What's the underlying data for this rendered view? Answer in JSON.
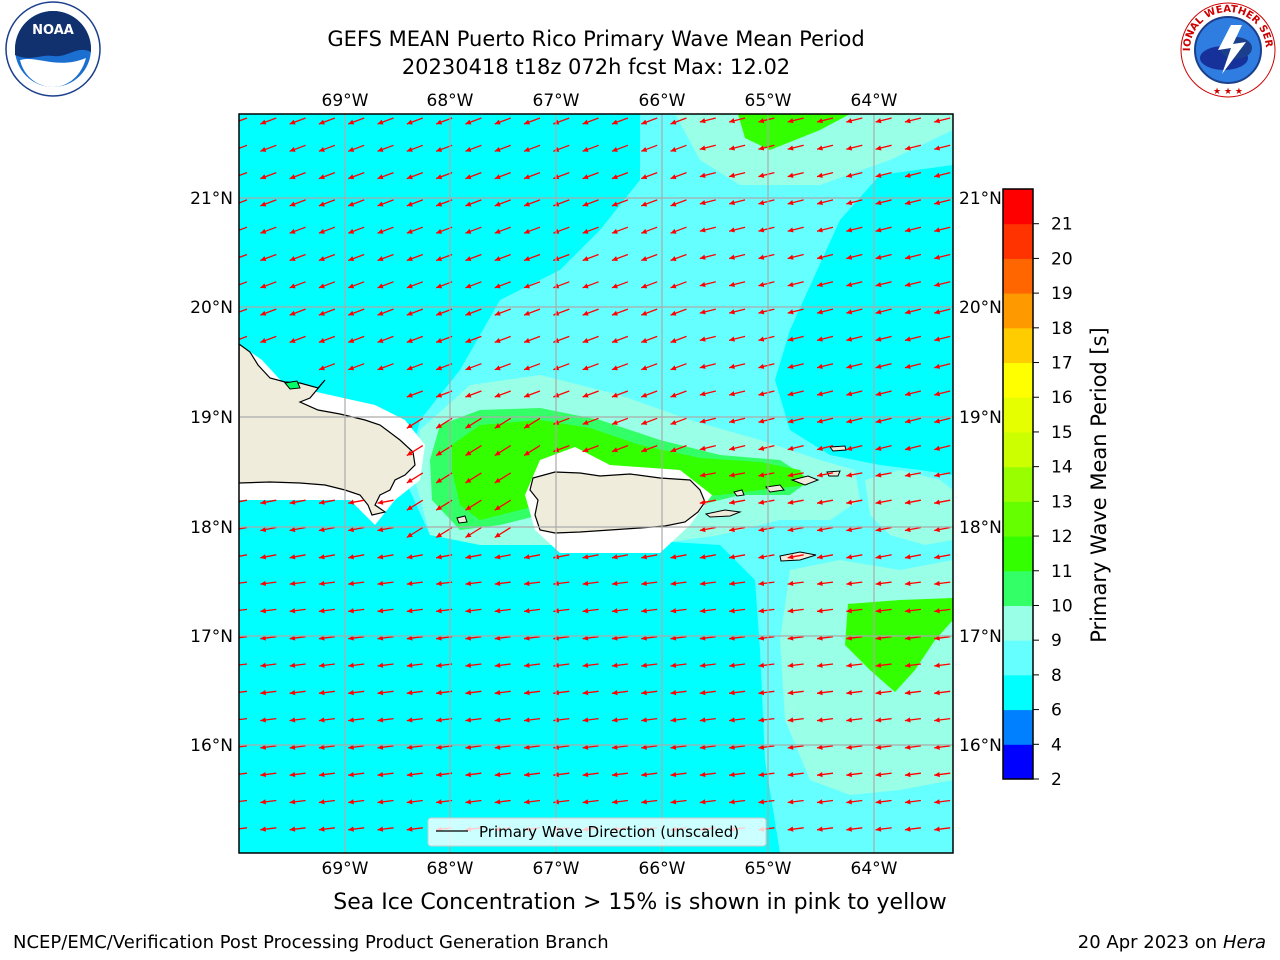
{
  "header": {
    "title_line1": "GEFS MEAN Puerto Rico Primary Wave Mean Period",
    "title_line2": "20230418 t18z 072h fcst   Max: 12.02"
  },
  "logos": {
    "left_text": "NOAA",
    "right_text": "NATIONAL WEATHER SERVICE"
  },
  "map": {
    "lon_labels": [
      "69°W",
      "68°W",
      "67°W",
      "66°W",
      "65°W",
      "64°W"
    ],
    "lat_labels": [
      "21°N",
      "20°N",
      "19°N",
      "18°N",
      "17°N",
      "16°N"
    ],
    "legend_label": "Primary Wave Direction (unscaled)",
    "colors": {
      "base_ocean": "#00ffff",
      "level_8_9": "#66ffff",
      "level_9_10": "#99ffe6",
      "level_10_11": "#33ff66",
      "level_11_12": "#33ff00",
      "land": "#efecdc",
      "arrows": "#ff0000",
      "grid": "#aaaaaa"
    }
  },
  "colorbar": {
    "label": "Primary Wave Mean Period [s]",
    "ticks": [
      "2",
      "4",
      "6",
      "8",
      "9",
      "10",
      "11",
      "12",
      "13",
      "14",
      "15",
      "16",
      "17",
      "18",
      "19",
      "20",
      "21"
    ],
    "colors": [
      "#0000ff",
      "#0080ff",
      "#00ffff",
      "#66ffff",
      "#99ffe6",
      "#33ff66",
      "#33ff00",
      "#66ff00",
      "#99ff00",
      "#ccff00",
      "#e6ff00",
      "#ffff00",
      "#ffcc00",
      "#ff9900",
      "#ff6600",
      "#ff3300",
      "#ff0000"
    ]
  },
  "subtitle": "Sea Ice Concentration > 15% is shown in pink to yellow",
  "footer": {
    "left": "NCEP/EMC/Verification Post Processing Product Generation Branch",
    "right_prefix": "20 Apr 2023 on ",
    "right_machine": "Hera"
  }
}
